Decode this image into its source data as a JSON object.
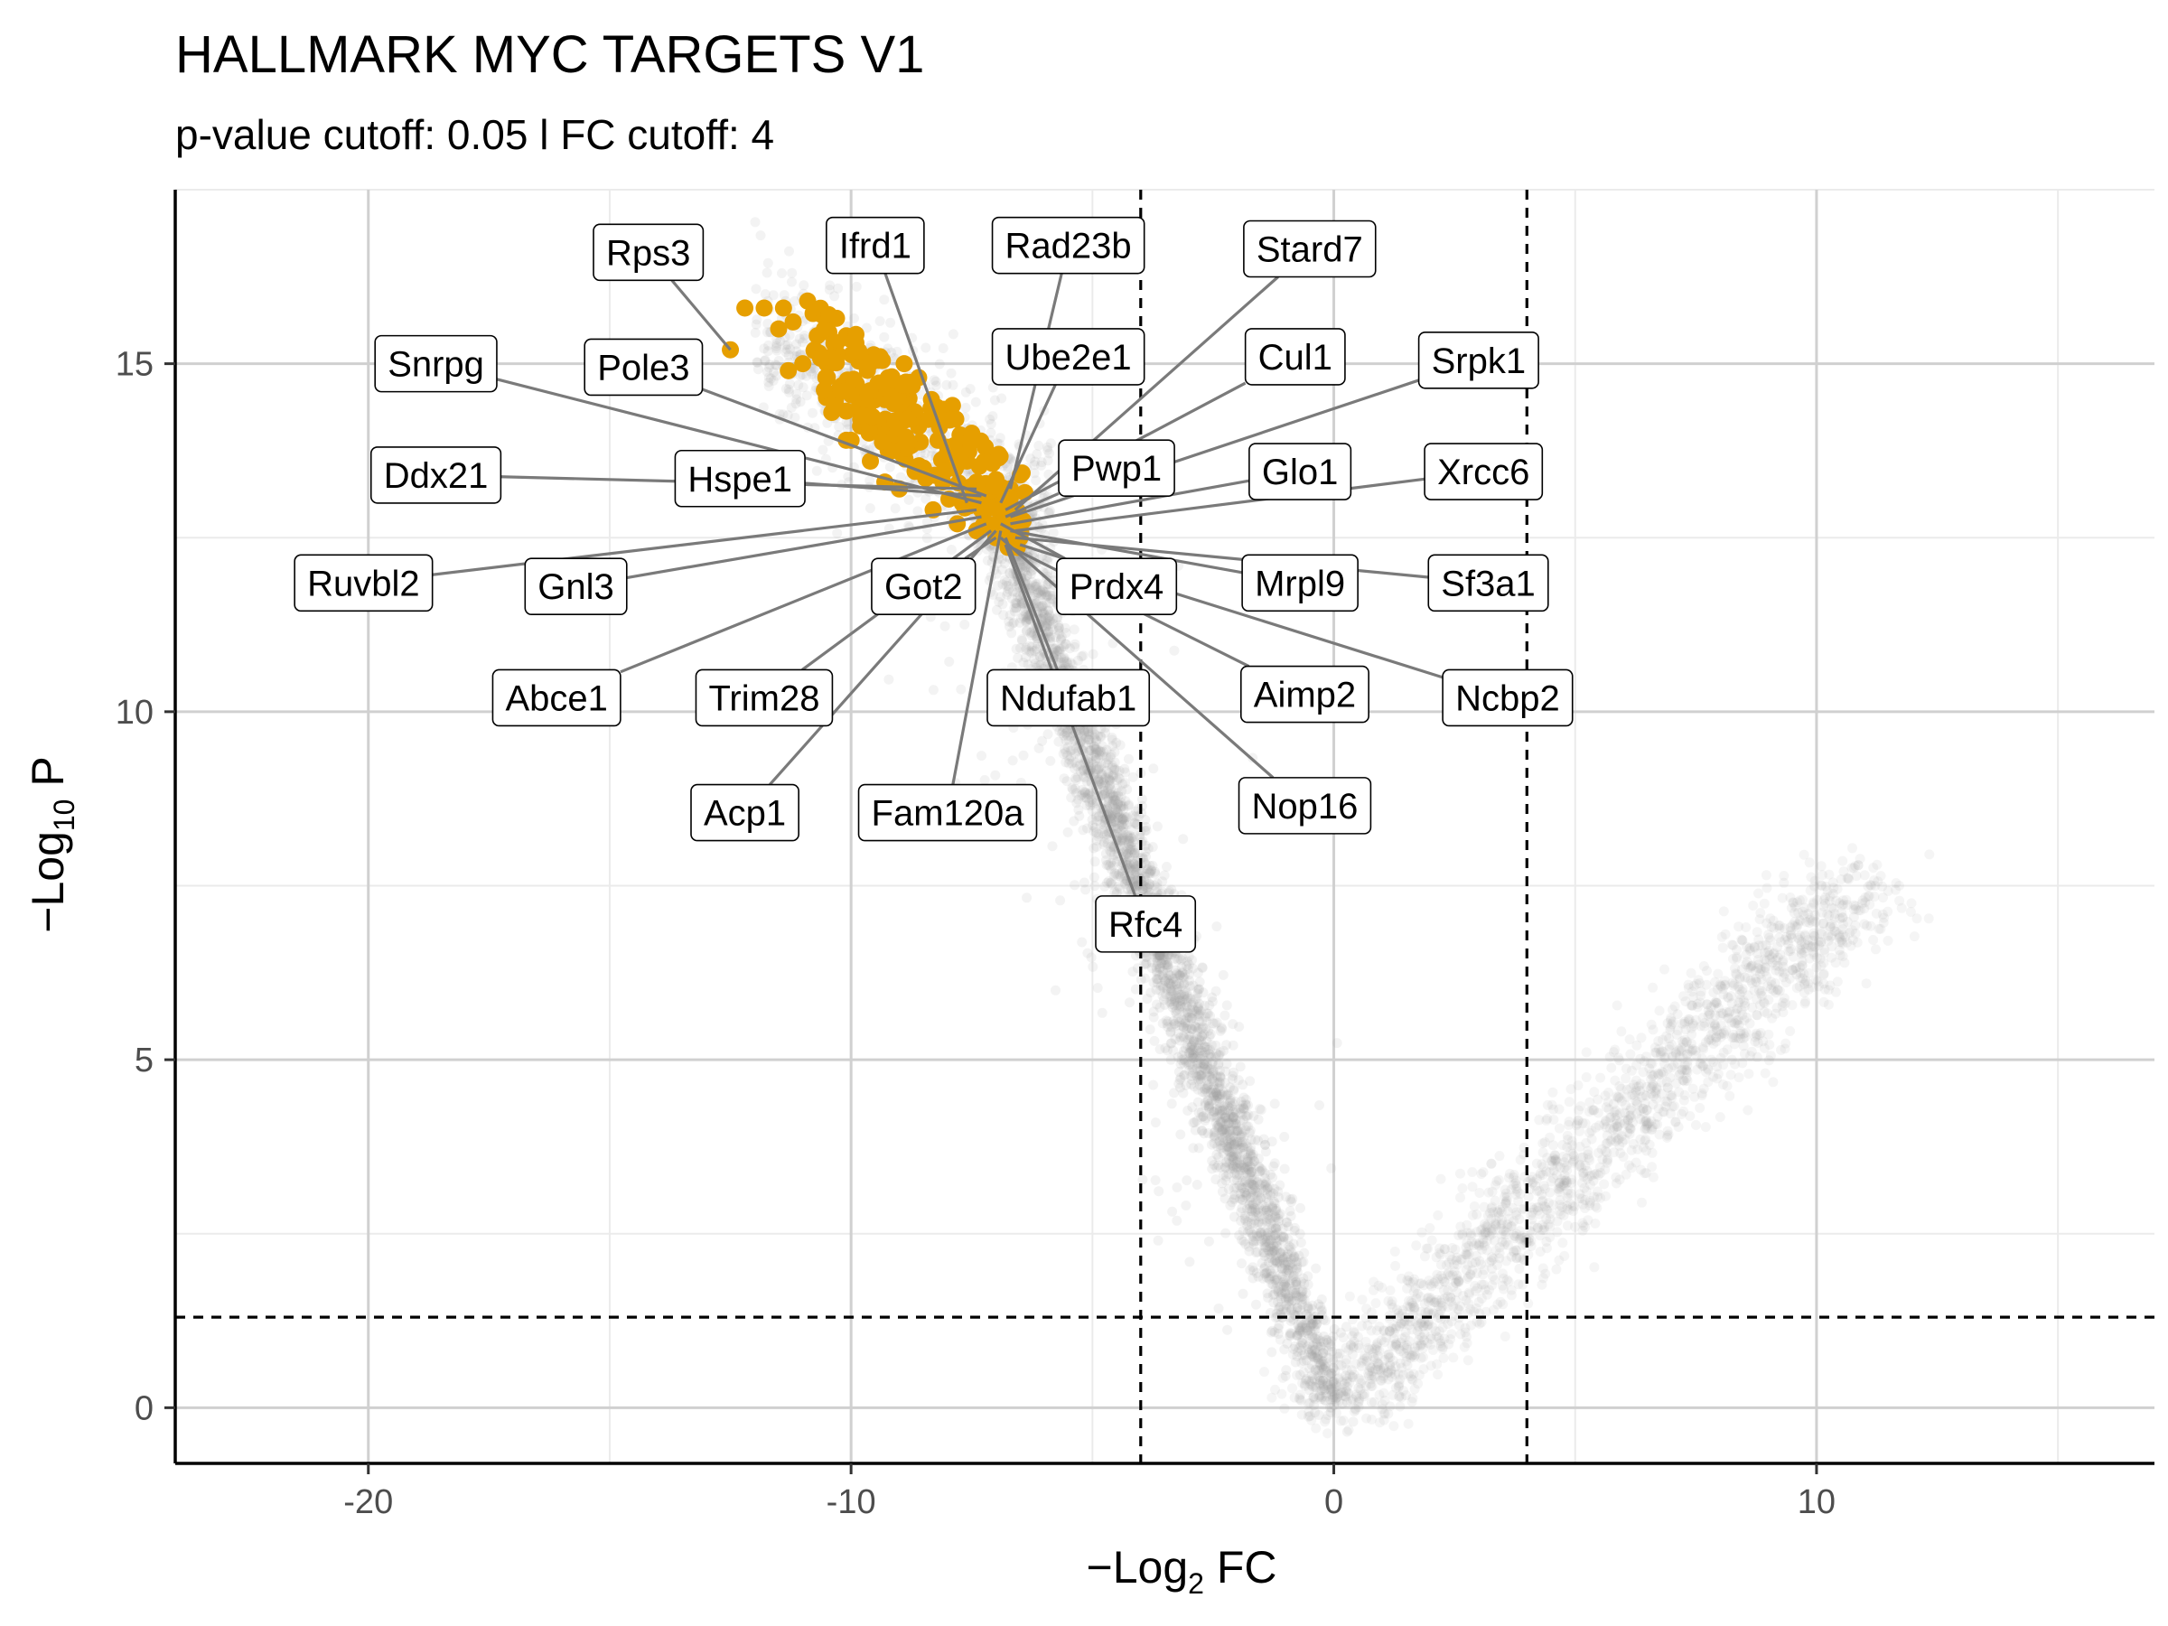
{
  "colors": {
    "background": "#ffffff",
    "grid_major": "#d0d0d0",
    "grid_minor": "#ebebeb",
    "background_points": "#999999",
    "highlight_points": "#E69F00",
    "cutoff_lines": "#000000",
    "axis_line": "#000000",
    "connector": "#7a7a7a"
  },
  "chart_data": {
    "type": "scatter",
    "title": "HALLMARK MYC TARGETS V1",
    "subtitle": "p-value cutoff: 0.05 l FC cutoff: 4",
    "xlabel": {
      "prefix": "−Log",
      "sub": "2",
      "suffix": " FC"
    },
    "ylabel": {
      "prefix": "−Log",
      "sub": "10",
      "suffix": " P"
    },
    "xlim": [
      -24,
      17
    ],
    "ylim": [
      -0.8,
      17.5
    ],
    "x_ticks": [
      -20,
      -10,
      0,
      10
    ],
    "x_tick_labels": [
      "-20",
      "-10",
      "0",
      "10"
    ],
    "y_ticks": [
      0,
      5,
      10,
      15
    ],
    "y_tick_labels": [
      "0",
      "5",
      "10",
      "15"
    ],
    "grid": true,
    "legend": "none",
    "cutoffs": {
      "fc_lines": [
        -4,
        4
      ],
      "p_line": 1.301
    },
    "highlight_series": [
      [
        -12.5,
        15.2
      ],
      [
        -12.2,
        15.8
      ],
      [
        -11.8,
        15.8
      ],
      [
        -11.4,
        15.8
      ],
      [
        -11.2,
        15.6
      ],
      [
        -10.9,
        15.9
      ],
      [
        -10.6,
        15.7
      ],
      [
        -10.3,
        15.3
      ],
      [
        -10.1,
        15.4
      ],
      [
        -10.7,
        15.4
      ],
      [
        -11.5,
        15.5
      ],
      [
        -11.0,
        15.0
      ],
      [
        -10.5,
        15.0
      ],
      [
        -10.0,
        14.6
      ],
      [
        -9.7,
        15.0
      ],
      [
        -9.5,
        14.6
      ],
      [
        -9.2,
        14.8
      ],
      [
        -9.0,
        14.4
      ],
      [
        -8.8,
        14.5
      ],
      [
        -8.6,
        14.1
      ],
      [
        -8.4,
        14.2
      ],
      [
        -8.2,
        13.9
      ],
      [
        -8.0,
        13.8
      ],
      [
        -7.8,
        13.7
      ],
      [
        -7.6,
        13.6
      ],
      [
        -7.4,
        13.3
      ],
      [
        -7.2,
        13.2
      ],
      [
        -7.0,
        13.0
      ],
      [
        -6.8,
        12.9
      ],
      [
        -6.6,
        12.7
      ],
      [
        -9.8,
        14.2
      ],
      [
        -9.4,
        14.0
      ],
      [
        -9.1,
        13.9
      ],
      [
        -8.9,
        13.7
      ],
      [
        -8.5,
        13.5
      ],
      [
        -8.1,
        13.3
      ],
      [
        -7.7,
        13.0
      ],
      [
        -7.3,
        12.9
      ],
      [
        -6.9,
        12.8
      ],
      [
        -10.4,
        14.3
      ],
      [
        -10.1,
        13.9
      ],
      [
        -9.6,
        13.6
      ],
      [
        -9.3,
        13.3
      ],
      [
        -10.5,
        15.6
      ],
      [
        -11.3,
        14.9
      ],
      [
        -9.9,
        15.3
      ],
      [
        -9.4,
        15.1
      ],
      [
        -8.9,
        15.0
      ],
      [
        -8.6,
        14.8
      ],
      [
        -7.9,
        14.4
      ],
      [
        -7.5,
        14.0
      ],
      [
        -7.1,
        13.6
      ],
      [
        -6.7,
        13.2
      ],
      [
        -9.0,
        13.2
      ],
      [
        -7.4,
        12.6
      ],
      [
        -7.0,
        12.5
      ],
      [
        -6.6,
        12.5
      ],
      [
        -10.0,
        13.9
      ],
      [
        -8.3,
        12.9
      ],
      [
        -7.8,
        12.7
      ]
    ],
    "labels": [
      {
        "gene": "Rps3",
        "point": [
          -12.5,
          15.2
        ]
      },
      {
        "gene": "Ifrd1",
        "point": [
          -7.6,
          13.0
        ]
      },
      {
        "gene": "Rad23b",
        "point": [
          -6.7,
          13.2
        ]
      },
      {
        "gene": "Stard7",
        "point": [
          -6.6,
          12.9
        ]
      },
      {
        "gene": "Snrpg",
        "point": [
          -7.3,
          13.0
        ]
      },
      {
        "gene": "Pole3",
        "point": [
          -7.2,
          13.1
        ]
      },
      {
        "gene": "Ube2e1",
        "point": [
          -6.9,
          13.0
        ]
      },
      {
        "gene": "Cul1",
        "point": [
          -6.8,
          12.9
        ]
      },
      {
        "gene": "Srpk1",
        "point": [
          -6.7,
          12.8
        ]
      },
      {
        "gene": "Ddx21",
        "point": [
          -7.4,
          13.2
        ]
      },
      {
        "gene": "Hspe1",
        "point": [
          -7.3,
          13.1
        ]
      },
      {
        "gene": "Pwp1",
        "point": [
          -6.8,
          12.8
        ]
      },
      {
        "gene": "Glo1",
        "point": [
          -6.7,
          12.7
        ]
      },
      {
        "gene": "Xrcc6",
        "point": [
          -6.6,
          12.6
        ]
      },
      {
        "gene": "Ruvbl2",
        "point": [
          -7.4,
          12.9
        ]
      },
      {
        "gene": "Gnl3",
        "point": [
          -7.3,
          12.8
        ]
      },
      {
        "gene": "Got2",
        "point": [
          -7.0,
          12.5
        ]
      },
      {
        "gene": "Prdx4",
        "point": [
          -6.9,
          12.7
        ]
      },
      {
        "gene": "Mrpl9",
        "point": [
          -6.7,
          12.6
        ]
      },
      {
        "gene": "Sf3a1",
        "point": [
          -6.6,
          12.5
        ]
      },
      {
        "gene": "Abce1",
        "point": [
          -7.2,
          12.7
        ]
      },
      {
        "gene": "Trim28",
        "point": [
          -7.1,
          12.6
        ]
      },
      {
        "gene": "Ndufab1",
        "point": [
          -6.8,
          12.5
        ]
      },
      {
        "gene": "Aimp2",
        "point": [
          -6.8,
          12.4
        ]
      },
      {
        "gene": "Ncbp2",
        "point": [
          -6.5,
          12.4
        ]
      },
      {
        "gene": "Acp1",
        "point": [
          -7.0,
          12.6
        ]
      },
      {
        "gene": "Fam120a",
        "point": [
          -6.9,
          12.6
        ]
      },
      {
        "gene": "Nop16",
        "point": [
          -6.9,
          12.5
        ]
      },
      {
        "gene": "Rfc4",
        "point": [
          -6.8,
          12.4
        ]
      }
    ]
  }
}
